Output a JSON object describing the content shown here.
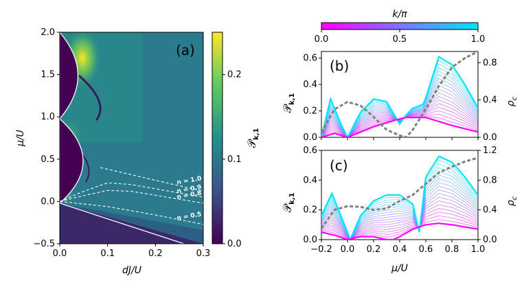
{
  "chart_data": [
    {
      "id": "a",
      "type": "heatmap",
      "panel_label": "(a)",
      "xlabel": "dJ/U",
      "ylabel": "μ/U",
      "xlim": [
        0.0,
        0.3
      ],
      "ylim": [
        -0.5,
        2.0
      ],
      "xticks": [
        "0.0",
        "0.1",
        "0.2",
        "0.3"
      ],
      "yticks": [
        "−0.5",
        "0.0",
        "0.5",
        "1.0",
        "1.5",
        "2.0"
      ],
      "colorbar": {
        "label": "𝒫",
        "label_sub": "k,1",
        "range": [
          0.0,
          0.25
        ],
        "ticks": [
          "0.0",
          "0.1",
          "0.2"
        ]
      },
      "density_contours": [
        {
          "label": "n = 1.0",
          "x": [
            0.085,
            0.3
          ],
          "y": [
            0.4,
            0.12
          ]
        },
        {
          "label": "n = 0.9",
          "x": [
            0.0,
            0.05,
            0.1,
            0.15,
            0.3
          ],
          "y": [
            0.0,
            0.12,
            0.22,
            0.2,
            0.05
          ]
        },
        {
          "label": "n = 0.8",
          "x": [
            0.0,
            0.05,
            0.1,
            0.15,
            0.3
          ],
          "y": [
            0.0,
            0.07,
            0.13,
            0.12,
            -0.02
          ]
        },
        {
          "label": "n = 0.5",
          "x": [
            0.0,
            0.1,
            0.2,
            0.3
          ],
          "y": [
            0.0,
            -0.06,
            -0.16,
            -0.27
          ]
        }
      ]
    },
    {
      "id": "b",
      "type": "line",
      "panel_label": "(b)",
      "xlim": [
        -0.2,
        1.0
      ],
      "ylim": [
        0.0,
        0.65
      ],
      "ylabel": "𝒫",
      "ylabel_sub": "k,1",
      "ylabel_right": "ρ",
      "ylabel_right_sub": "c",
      "yticks": [
        "0.0",
        "0.2",
        "0.4",
        "0.6"
      ],
      "yticks_right": [
        "0.0",
        "0.4",
        "0.8"
      ],
      "series": [
        {
          "name": "k/π = 0.0",
          "color": "#ff00ff",
          "x": [
            -0.2,
            -0.1,
            0.0,
            0.1,
            0.2,
            0.3,
            0.4,
            0.45,
            0.6,
            0.7,
            0.8,
            1.0
          ],
          "y": [
            0.0,
            0.03,
            0.0,
            0.04,
            0.08,
            0.11,
            0.14,
            0.15,
            0.15,
            0.12,
            0.09,
            0.04
          ]
        },
        {
          "name": "k/π = 1.0",
          "color": "#00e5ff",
          "x": [
            -0.2,
            -0.13,
            -0.05,
            0.0,
            0.1,
            0.2,
            0.3,
            0.4,
            0.45,
            0.5,
            0.58,
            0.6,
            0.7,
            0.8,
            0.9,
            1.0
          ],
          "y": [
            0.0,
            0.29,
            0.1,
            0.0,
            0.19,
            0.29,
            0.27,
            0.1,
            0.17,
            0.22,
            0.25,
            0.3,
            0.61,
            0.55,
            0.4,
            0.22
          ]
        },
        {
          "name": "ρc",
          "color": "#808080",
          "dashed": true,
          "axis": "right",
          "x": [
            -0.2,
            -0.1,
            0.0,
            0.1,
            0.2,
            0.3,
            0.4,
            0.45,
            0.5,
            0.6,
            0.7,
            0.8,
            0.9,
            1.0
          ],
          "y": [
            0.05,
            0.3,
            0.38,
            0.34,
            0.22,
            0.08,
            0.02,
            0.0,
            0.08,
            0.3,
            0.55,
            0.75,
            0.85,
            0.92
          ]
        }
      ]
    },
    {
      "id": "c",
      "type": "line",
      "panel_label": "(c)",
      "xlabel": "μ/U",
      "xlim": [
        -0.2,
        1.0
      ],
      "ylim": [
        0.0,
        0.6
      ],
      "xticks": [
        "−0.2",
        "0.0",
        "0.2",
        "0.4",
        "0.6",
        "0.8",
        "1.0"
      ],
      "ylabel": "𝒫",
      "ylabel_sub": "k,1",
      "ylabel_right": "ρ",
      "ylabel_right_sub": "c",
      "yticks": [
        "0.0",
        "0.2",
        "0.4",
        "0.6"
      ],
      "yticks_right": [
        "0.0",
        "0.4",
        "0.8",
        "1.2"
      ],
      "series": [
        {
          "name": "k/π = 0.0",
          "color": "#ff00ff",
          "x": [
            -0.2,
            -0.1,
            0.0,
            0.1,
            0.2,
            0.3,
            0.35,
            0.4,
            0.5,
            0.6,
            0.7,
            0.8,
            1.0
          ],
          "y": [
            0.05,
            0.03,
            0.0,
            0.02,
            0.02,
            0.0,
            0.0,
            0.02,
            0.07,
            0.1,
            0.11,
            0.1,
            0.07
          ]
        },
        {
          "name": "k/π = 1.0",
          "color": "#00e5ff",
          "x": [
            -0.2,
            -0.12,
            0.0,
            0.02,
            0.1,
            0.2,
            0.3,
            0.4,
            0.5,
            0.55,
            0.6,
            0.7,
            0.8,
            0.9,
            1.0
          ],
          "y": [
            0.16,
            0.31,
            0.05,
            0.0,
            0.16,
            0.26,
            0.3,
            0.3,
            0.24,
            0.05,
            0.42,
            0.56,
            0.52,
            0.42,
            0.3
          ]
        },
        {
          "name": "ρc",
          "color": "#808080",
          "dashed": true,
          "axis": "right",
          "x": [
            -0.2,
            -0.1,
            0.0,
            0.1,
            0.2,
            0.3,
            0.4,
            0.5,
            0.6,
            0.7,
            0.8,
            0.9,
            1.0
          ],
          "y": [
            0.15,
            0.4,
            0.45,
            0.44,
            0.4,
            0.42,
            0.52,
            0.6,
            0.75,
            0.9,
            0.98,
            1.05,
            1.1
          ]
        }
      ]
    }
  ],
  "colorbar_top": {
    "label": "k/π",
    "ticks": [
      "0.0",
      "0.5",
      "1.0"
    ],
    "colors": [
      "#ff00ff",
      "#00e5ff"
    ]
  }
}
